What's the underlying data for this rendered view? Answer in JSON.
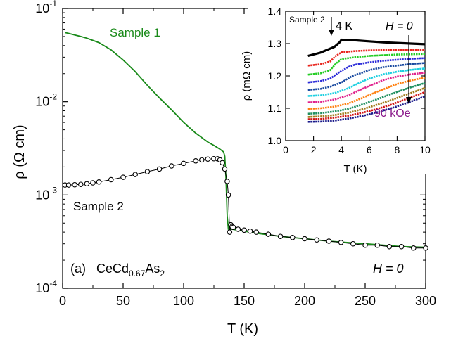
{
  "chart_data": [
    {
      "type": "line",
      "panel_label": "(a)",
      "compound": {
        "base": "CeCd",
        "sub": "0.67",
        "mid": "As",
        "sub2": "2"
      },
      "field_label": "H = 0",
      "xlabel": "T (K)",
      "ylabel": "ρ (Ω cm)",
      "xlim": [
        0,
        300
      ],
      "ylim": [
        0.0001,
        0.1
      ],
      "yscale": "log",
      "x_ticks": [
        "0",
        "50",
        "100",
        "150",
        "200",
        "250",
        "300"
      ],
      "y_ticks": [
        {
          "base": "10",
          "exp": "-4"
        },
        {
          "base": "10",
          "exp": "-3"
        },
        {
          "base": "10",
          "exp": "-2"
        },
        {
          "base": "10",
          "exp": "-1"
        }
      ],
      "grid": false,
      "series": [
        {
          "name": "Sample 1",
          "color": "#1a8a1a",
          "style": "line",
          "x": [
            2,
            5,
            10,
            15,
            20,
            30,
            40,
            50,
            60,
            70,
            80,
            90,
            100,
            110,
            120,
            125,
            130,
            133,
            134,
            135,
            136,
            137,
            140,
            150,
            160,
            180,
            200,
            220,
            250,
            280,
            300
          ],
          "y": [
            0.055,
            0.054,
            0.052,
            0.05,
            0.048,
            0.043,
            0.036,
            0.028,
            0.021,
            0.015,
            0.011,
            0.0082,
            0.006,
            0.0046,
            0.0037,
            0.0034,
            0.0031,
            0.0029,
            0.0026,
            0.0015,
            0.0006,
            0.00043,
            0.00043,
            0.00041,
            0.00039,
            0.00036,
            0.00034,
            0.00032,
            0.0003,
            0.00028,
            0.000275
          ]
        },
        {
          "name": "Sample 2",
          "color": "#000000",
          "style": "markers",
          "x": [
            2,
            5,
            10,
            15,
            20,
            25,
            30,
            40,
            50,
            60,
            70,
            80,
            90,
            100,
            110,
            115,
            120,
            125,
            128,
            130,
            132,
            134,
            136,
            137,
            138,
            139,
            140,
            141,
            145,
            150,
            155,
            160,
            170,
            180,
            190,
            200,
            210,
            220,
            230,
            240,
            250,
            260,
            270,
            280,
            290,
            300
          ],
          "y": [
            0.00128,
            0.00128,
            0.00129,
            0.0013,
            0.00132,
            0.00135,
            0.00138,
            0.00146,
            0.00155,
            0.00166,
            0.00178,
            0.0019,
            0.00205,
            0.00218,
            0.00232,
            0.00238,
            0.00243,
            0.00245,
            0.00244,
            0.00238,
            0.00222,
            0.0019,
            0.0014,
            0.001,
            0.0004,
            0.00048,
            0.00046,
            0.00045,
            0.00043,
            0.00042,
            0.00041,
            0.0004,
            0.00038,
            0.00036,
            0.00035,
            0.00034,
            0.00033,
            0.00032,
            0.00031,
            0.0003,
            0.00029,
            0.00029,
            0.00028,
            0.00028,
            0.00027,
            0.00027
          ]
        }
      ],
      "annotations": [
        "Sample 1",
        "Sample 2"
      ]
    },
    {
      "type": "line",
      "inset": true,
      "xlabel": "T (K)",
      "ylabel": "ρ (mΩ cm)",
      "xlim": [
        0,
        10
      ],
      "ylim": [
        1.0,
        1.4
      ],
      "x_ticks": [
        "0",
        "2",
        "4",
        "6",
        "8",
        "10"
      ],
      "y_ticks": [
        "1.0",
        "1.1",
        "1.2",
        "1.3",
        "1.4"
      ],
      "sample_label": "Sample 2",
      "arrow_label": "4 K",
      "top_label": "H = 0",
      "bottom_label": "90 kOe",
      "bottom_label_color": "#8b1a8b",
      "series": [
        {
          "color": "#000000",
          "x": [
            1.6,
            2.5,
            3.5,
            3.9,
            4.0,
            5,
            6,
            7,
            8,
            9,
            10
          ],
          "y": [
            1.262,
            1.272,
            1.29,
            1.305,
            1.312,
            1.31,
            1.307,
            1.304,
            1.302,
            1.3,
            1.298
          ]
        },
        {
          "color": "#e8241c",
          "x": [
            1.6,
            2.5,
            3.2,
            3.6,
            4,
            5,
            6,
            7,
            8,
            9,
            10
          ],
          "y": [
            1.232,
            1.236,
            1.245,
            1.262,
            1.273,
            1.277,
            1.279,
            1.28,
            1.28,
            1.28,
            1.28
          ]
        },
        {
          "color": "#22cc22",
          "x": [
            1.6,
            2.5,
            3.2,
            3.6,
            4,
            5,
            6,
            7,
            8,
            9,
            10
          ],
          "y": [
            1.204,
            1.208,
            1.218,
            1.238,
            1.252,
            1.258,
            1.262,
            1.264,
            1.266,
            1.267,
            1.268
          ]
        },
        {
          "color": "#2a2ad8",
          "x": [
            1.6,
            2.5,
            3.2,
            3.8,
            4.5,
            5,
            6,
            7,
            8,
            9,
            10
          ],
          "y": [
            1.18,
            1.184,
            1.192,
            1.21,
            1.228,
            1.235,
            1.242,
            1.247,
            1.25,
            1.253,
            1.255
          ]
        },
        {
          "color": "#1a4aa0",
          "x": [
            1.6,
            2.5,
            3.2,
            4,
            4.8,
            5.5,
            6,
            7,
            8,
            9,
            10
          ],
          "y": [
            1.157,
            1.16,
            1.167,
            1.18,
            1.2,
            1.21,
            1.218,
            1.227,
            1.232,
            1.237,
            1.24
          ]
        },
        {
          "color": "#1ccfe0",
          "x": [
            1.6,
            2.5,
            3.5,
            4.5,
            5.5,
            6,
            7,
            8,
            9,
            10
          ],
          "y": [
            1.138,
            1.14,
            1.147,
            1.162,
            1.183,
            1.192,
            1.205,
            1.213,
            1.219,
            1.223
          ]
        },
        {
          "color": "#e0208c",
          "x": [
            1.6,
            2.5,
            3.5,
            4.5,
            5.5,
            6.5,
            7,
            8,
            9,
            10
          ],
          "y": [
            1.118,
            1.12,
            1.127,
            1.14,
            1.16,
            1.178,
            1.187,
            1.198,
            1.205,
            1.21
          ]
        },
        {
          "color": "#ff7f0e",
          "x": [
            1.6,
            2.5,
            3.5,
            4.5,
            5.5,
            6.5,
            7.5,
            8,
            9,
            10
          ],
          "y": [
            1.098,
            1.1,
            1.105,
            1.115,
            1.132,
            1.15,
            1.167,
            1.175,
            1.186,
            1.195
          ]
        },
        {
          "color": "#1f8f5f",
          "x": [
            1.6,
            2.5,
            3.5,
            4.5,
            5.5,
            6.5,
            7.5,
            8.5,
            9,
            10
          ],
          "y": [
            1.083,
            1.085,
            1.09,
            1.098,
            1.112,
            1.127,
            1.143,
            1.158,
            1.165,
            1.178
          ]
        },
        {
          "color": "#a07a1a",
          "x": [
            1.6,
            2.5,
            3.5,
            4.5,
            5.5,
            6.5,
            7.5,
            8.5,
            9.5,
            10
          ],
          "y": [
            1.073,
            1.075,
            1.079,
            1.086,
            1.097,
            1.11,
            1.124,
            1.14,
            1.155,
            1.163
          ]
        },
        {
          "color": "#d01010",
          "x": [
            1.6,
            2.5,
            3.5,
            4.5,
            5.5,
            6.5,
            7.5,
            8.5,
            9.5,
            10
          ],
          "y": [
            1.066,
            1.067,
            1.071,
            1.077,
            1.086,
            1.097,
            1.11,
            1.126,
            1.142,
            1.15
          ]
        },
        {
          "color": "#1a1a8a",
          "x": [
            1.6,
            2.5,
            3.5,
            4.5,
            5.5,
            6.5,
            7.5,
            8.5,
            9.5,
            10
          ],
          "y": [
            1.058,
            1.059,
            1.062,
            1.068,
            1.076,
            1.087,
            1.099,
            1.113,
            1.129,
            1.137
          ]
        }
      ]
    }
  ]
}
